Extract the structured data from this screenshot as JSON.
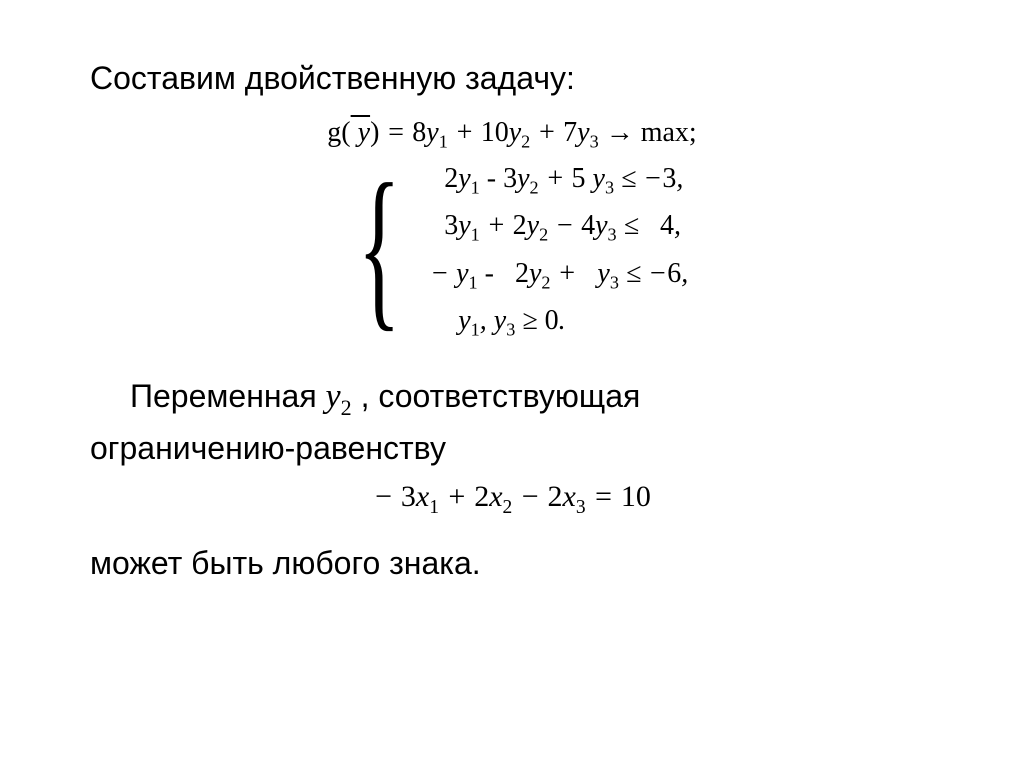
{
  "slide": {
    "title": "Составим двойственную задачу:",
    "title_fontsize": 32,
    "title_color": "#000000",
    "objective_function": {
      "prefix": "g(",
      "variable_overline": "y",
      "closing": ") = ",
      "terms": "8y₁ + 10y₂ + 7y₃",
      "arrow": " → ",
      "goal": "max;",
      "full_text_html": "g(<span class='overline'>y</span>) = 8<i>y</i><sub>1</sub> + 10<i>y</i><sub>2</sub> + 7<i>y</i><sub>3</sub> → max;"
    },
    "constraints": [
      "  2y₁ - 3y₂ + 5 y₃ ≤ −3,",
      "  3y₁ + 2y₂ − 4y₃ ≤   4,",
      "− y₁ -   2y₂ +   y₃ ≤ −6,",
      "    y₁, y₃ ≥ 0."
    ],
    "body_line_1_prefix": "Переменная ",
    "body_line_1_var": "y₂",
    "body_line_1_suffix": " , соответствующая",
    "body_line_2": "ограничению-равенству",
    "equality_constraint": "− 3x₁ + 2x₂ − 2x₃ = 10",
    "body_line_3": "может быть любого знака.",
    "background_color": "#ffffff",
    "math_font": "Times New Roman",
    "body_font": "Arial",
    "math_fontsize": 28,
    "body_fontsize": 32
  }
}
